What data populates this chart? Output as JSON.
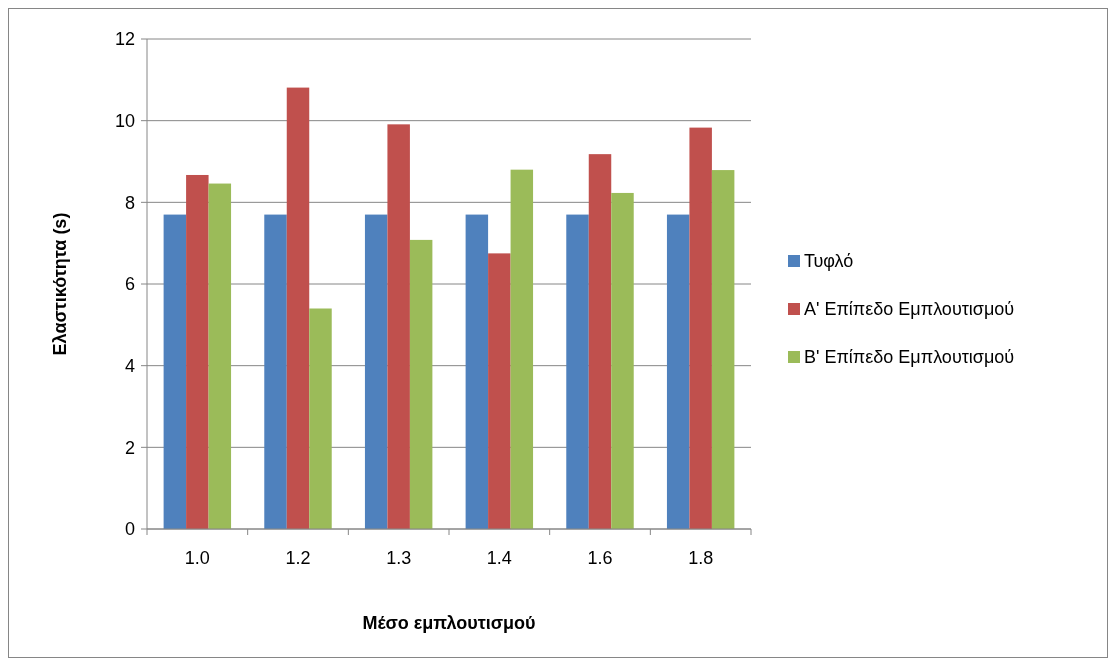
{
  "chart_data": {
    "type": "bar",
    "xlabel": "Μέσο εμπλουτισμού",
    "ylabel": "Ελαστικότητα (s)",
    "categories": [
      "1.0",
      "1.2",
      "1.3",
      "1.4",
      "1.6",
      "1.8"
    ],
    "series": [
      {
        "name": "Τυφλό",
        "color": "#4f81bd",
        "values": [
          7.7,
          7.7,
          7.7,
          7.7,
          7.7,
          7.7
        ]
      },
      {
        "name": "Α' Επίπεδο Εμπλουτισμού",
        "color": "#c0504d",
        "values": [
          8.67,
          10.81,
          9.91,
          6.75,
          9.18,
          9.83
        ]
      },
      {
        "name": "Β' Επίπεδο Εμπλουτισμού",
        "color": "#9bbb59",
        "values": [
          8.46,
          5.4,
          7.08,
          8.8,
          8.23,
          8.79
        ]
      }
    ],
    "ylim": [
      0,
      12
    ],
    "yticks": [
      0,
      2,
      4,
      6,
      8,
      10,
      12
    ],
    "grid": "y",
    "legend": "right"
  }
}
